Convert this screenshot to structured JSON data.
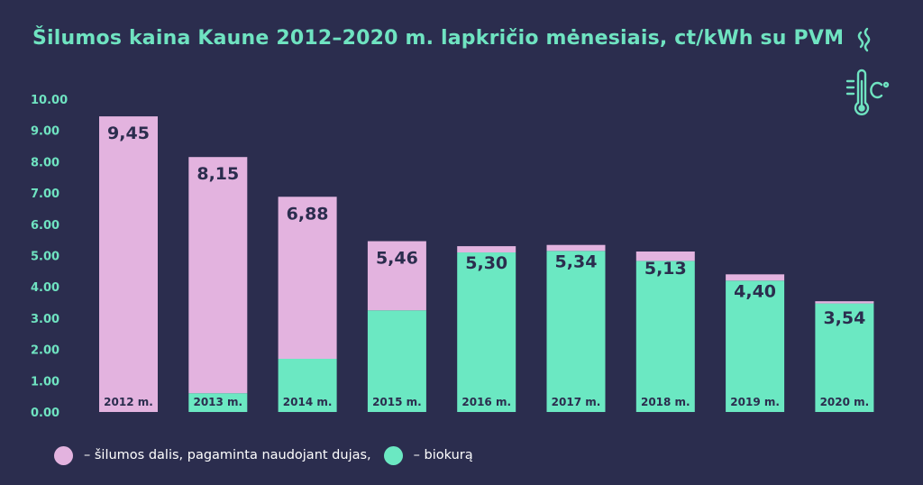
{
  "title": "Šilumos kaina Kaune 2012–2020 m. lapkričio mėnesiais, ct/kWh su PVM",
  "icons": [
    "thermometer-icon",
    "heat-wave-icon"
  ],
  "colors": {
    "background": "#2b2d4e",
    "accent": "#6fe3c1",
    "gas": "#e3b3df",
    "biofuel": "#6be8c2",
    "label": "#2b2d4e"
  },
  "legend": {
    "gas_label": "– šilumos dalis, pagaminta naudojant dujas,",
    "biofuel_label": "– biokurą"
  },
  "chart_data": {
    "type": "bar",
    "stacked": true,
    "title": "Šilumos kaina Kaune 2012–2020 m. lapkričio mėnesiais, ct/kWh su PVM",
    "categories": [
      "2012 m.",
      "2013 m.",
      "2014 m.",
      "2015 m.",
      "2016 m.",
      "2017 m.",
      "2018 m.",
      "2019 m.",
      "2020 m."
    ],
    "totals": [
      9.45,
      8.15,
      6.88,
      5.46,
      5.3,
      5.34,
      5.13,
      4.4,
      3.54
    ],
    "total_labels": [
      "9,45",
      "8,15",
      "6,88",
      "5,46",
      "5,30",
      "5,34",
      "5,13",
      "4,40",
      "3,54"
    ],
    "series": [
      {
        "name": "– biokurą",
        "color": "#6be8c2",
        "values": [
          0,
          0.6,
          1.7,
          3.25,
          5.1,
          5.15,
          4.83,
          4.2,
          3.47
        ]
      },
      {
        "name": "– šilumos dalis, pagaminta naudojant dujas,",
        "color": "#e3b3df",
        "values": [
          9.45,
          7.55,
          5.18,
          2.21,
          0.2,
          0.19,
          0.3,
          0.2,
          0.07
        ]
      }
    ],
    "y_ticks": [
      "0.00",
      "1.00",
      "2.00",
      "3.00",
      "4.00",
      "5.00",
      "6.00",
      "7.00",
      "8.00",
      "9.00",
      "10.00"
    ],
    "ylim": [
      0,
      10
    ],
    "xlabel": "",
    "ylabel": "",
    "grid": false,
    "legend_position": "bottom-left"
  }
}
